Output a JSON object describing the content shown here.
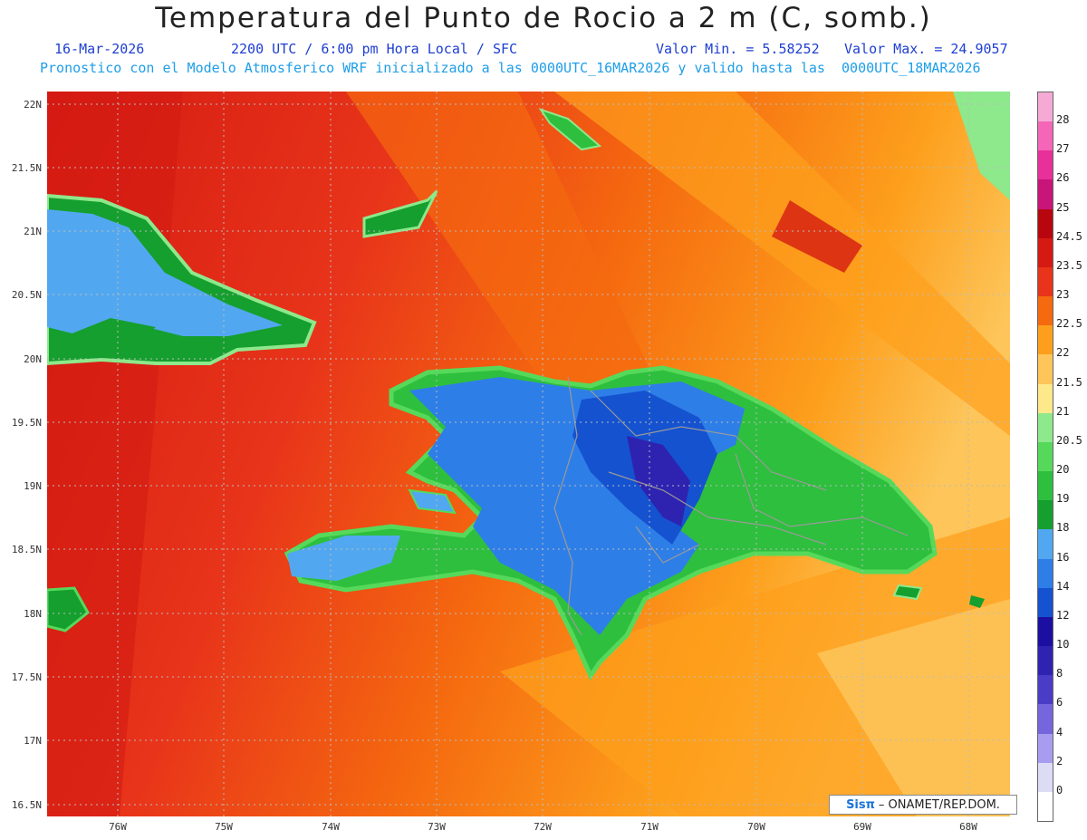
{
  "header": {
    "title": "Temperatura del Punto de Rocio a 2 m (C, somb.)",
    "date": "16-Mar-2026",
    "time": "2200 UTC / 6:00 pm Hora Local / SFC",
    "min": "Valor Min. = 5.58252",
    "max": "Valor Max. = 24.9057",
    "init": "Pronostico con el Modelo Atmosferico WRF inicializado a las 0000UTC_16MAR2026 y valido hasta las  0000UTC_18MAR2026"
  },
  "map": {
    "lat_labels": [
      "22N",
      "21.5N",
      "21N",
      "20.5N",
      "20N",
      "19.5N",
      "19N",
      "18.5N",
      "18N",
      "17.5N",
      "17N",
      "16.5N"
    ],
    "lon_labels": [
      "76W",
      "75W",
      "74W",
      "73W",
      "72W",
      "71W",
      "70W",
      "69W",
      "68W"
    ],
    "credit_logo": "Sisπ",
    "credit_text": "– ONAMET/REP.DOM."
  },
  "colorbar": {
    "labels": [
      "0",
      "2",
      "4",
      "6",
      "8",
      "10",
      "12",
      "14",
      "16",
      "18",
      "19",
      "20",
      "20.5",
      "21",
      "21.5",
      "22",
      "22.5",
      "23",
      "23.5",
      "24.5",
      "25",
      "26",
      "27",
      "28"
    ],
    "colors": [
      "#ffffff",
      "#dcdcf5",
      "#a89cf0",
      "#7566dd",
      "#4a3cc6",
      "#2e23b0",
      "#1a0fa0",
      "#1452d0",
      "#2e7ee8",
      "#52a8f0",
      "#159f2e",
      "#2ebf3e",
      "#56d95a",
      "#8ee88c",
      "#fde88a",
      "#fdc55a",
      "#fd9f1c",
      "#f5690f",
      "#e8341a",
      "#d41a12",
      "#b8060e",
      "#c8157a",
      "#e8309a",
      "#f566b8",
      "#f5aad5"
    ]
  }
}
